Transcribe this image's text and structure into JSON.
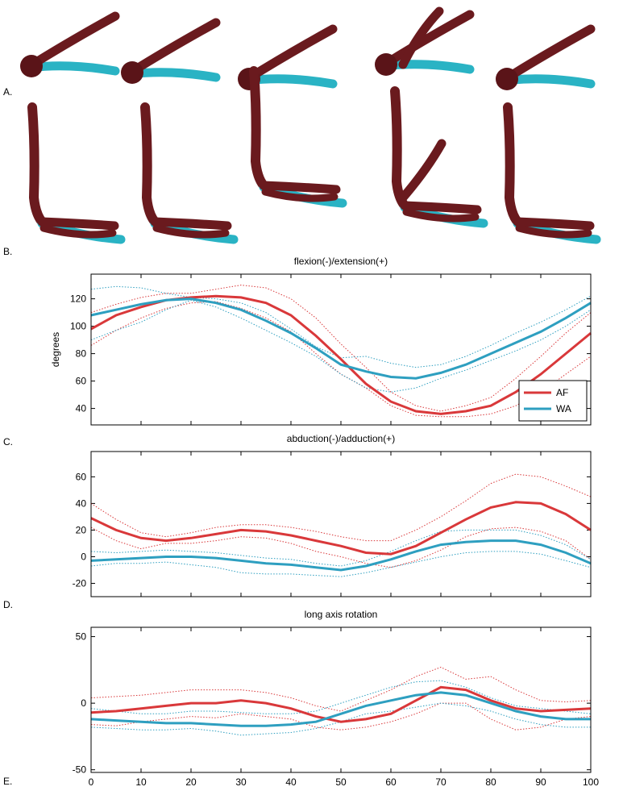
{
  "panel_labels": [
    "A.",
    "B.",
    "C.",
    "D.",
    "E."
  ],
  "chart_data": [
    {
      "type": "line",
      "title": "flexion(-)/extension(+)",
      "ylabel": "degrees",
      "legend": "lower right",
      "xtick_labels": false,
      "x": [
        0,
        5,
        10,
        15,
        20,
        25,
        30,
        35,
        40,
        45,
        50,
        55,
        60,
        65,
        70,
        75,
        80,
        85,
        90,
        95,
        100
      ],
      "xlim": [
        0,
        100
      ],
      "xticks": [
        0,
        10,
        20,
        30,
        40,
        50,
        60,
        70,
        80,
        90,
        100
      ],
      "ylim": [
        28,
        138
      ],
      "yticks": [
        40,
        60,
        80,
        100,
        120
      ],
      "series": [
        {
          "name": "AF",
          "color": "#d9383a",
          "style": "solid",
          "values": [
            98,
            108,
            114,
            119,
            121,
            122,
            121,
            117,
            108,
            93,
            76,
            58,
            45,
            38,
            36,
            38,
            42,
            52,
            65,
            80,
            95
          ]
        },
        {
          "name": "WA",
          "color": "#2e9fc0",
          "style": "solid",
          "values": [
            108,
            112,
            116,
            119,
            120,
            117,
            112,
            104,
            95,
            84,
            72,
            67,
            63,
            62,
            66,
            72,
            80,
            88,
            96,
            106,
            117
          ]
        },
        {
          "color": "#d9383a",
          "style": "dotted",
          "values": [
            110,
            116,
            121,
            124,
            124,
            127,
            130,
            128,
            120,
            106,
            87,
            70,
            52,
            42,
            38,
            42,
            48,
            62,
            78,
            95,
            110
          ]
        },
        {
          "color": "#d9383a",
          "style": "dotted",
          "values": [
            86,
            97,
            106,
            113,
            117,
            118,
            113,
            106,
            96,
            80,
            65,
            55,
            42,
            35,
            34,
            34,
            36,
            42,
            52,
            65,
            78
          ]
        },
        {
          "color": "#2e9fc0",
          "style": "dotted",
          "values": [
            127,
            129,
            128,
            124,
            121,
            120,
            117,
            110,
            98,
            85,
            77,
            78,
            73,
            70,
            72,
            78,
            86,
            95,
            103,
            112,
            122
          ]
        },
        {
          "color": "#2e9fc0",
          "style": "dotted",
          "values": [
            90,
            97,
            103,
            112,
            119,
            114,
            106,
            97,
            88,
            78,
            65,
            55,
            52,
            55,
            62,
            68,
            75,
            82,
            90,
            100,
            112
          ]
        }
      ]
    },
    {
      "type": "line",
      "title": "abduction(-)/adduction(+)",
      "xtick_labels": false,
      "x": [
        0,
        5,
        10,
        15,
        20,
        25,
        30,
        35,
        40,
        45,
        50,
        55,
        60,
        65,
        70,
        75,
        80,
        85,
        90,
        95,
        100
      ],
      "xlim": [
        0,
        100
      ],
      "xticks": [
        0,
        10,
        20,
        30,
        40,
        50,
        60,
        70,
        80,
        90,
        100
      ],
      "ylim": [
        -30,
        79
      ],
      "yticks": [
        -20,
        0,
        20,
        40,
        60
      ],
      "series": [
        {
          "color": "#d9383a",
          "style": "solid",
          "values": [
            29,
            20,
            14,
            12,
            14,
            17,
            20,
            19,
            16,
            12,
            8,
            3,
            2,
            8,
            18,
            28,
            37,
            41,
            40,
            32,
            20
          ]
        },
        {
          "color": "#2e9fc0",
          "style": "solid",
          "values": [
            -3,
            -2,
            -1,
            0,
            0,
            -1,
            -3,
            -5,
            -6,
            -8,
            -10,
            -7,
            -2,
            4,
            9,
            11,
            12,
            12,
            9,
            3,
            -5
          ]
        },
        {
          "color": "#d9383a",
          "style": "dotted",
          "values": [
            40,
            28,
            18,
            15,
            18,
            22,
            24,
            24,
            22,
            19,
            15,
            12,
            12,
            20,
            30,
            42,
            55,
            62,
            60,
            53,
            45
          ]
        },
        {
          "color": "#d9383a",
          "style": "dotted",
          "values": [
            22,
            12,
            6,
            10,
            10,
            12,
            15,
            14,
            10,
            4,
            0,
            -5,
            -8,
            -3,
            5,
            15,
            21,
            22,
            19,
            12,
            -2
          ]
        },
        {
          "color": "#2e9fc0",
          "style": "dotted",
          "values": [
            4,
            3,
            4,
            5,
            4,
            3,
            1,
            -1,
            -2,
            -5,
            -7,
            -3,
            4,
            12,
            19,
            20,
            20,
            20,
            16,
            9,
            -2
          ]
        },
        {
          "color": "#2e9fc0",
          "style": "dotted",
          "values": [
            -7,
            -5,
            -5,
            -4,
            -6,
            -8,
            -12,
            -13,
            -13,
            -14,
            -15,
            -12,
            -8,
            -4,
            0,
            3,
            4,
            4,
            2,
            -3,
            -8
          ]
        }
      ]
    },
    {
      "type": "line",
      "title": "long axis rotation",
      "xtick_labels": true,
      "x": [
        0,
        5,
        10,
        15,
        20,
        25,
        30,
        35,
        40,
        45,
        50,
        55,
        60,
        65,
        70,
        75,
        80,
        85,
        90,
        95,
        100
      ],
      "xlim": [
        0,
        100
      ],
      "xticks": [
        0,
        10,
        20,
        30,
        40,
        50,
        60,
        70,
        80,
        90,
        100
      ],
      "ylim": [
        -52,
        57
      ],
      "yticks": [
        -50,
        0,
        50
      ],
      "series": [
        {
          "color": "#d9383a",
          "style": "solid",
          "values": [
            -7,
            -6,
            -4,
            -2,
            0,
            0,
            2,
            0,
            -4,
            -10,
            -14,
            -12,
            -8,
            2,
            12,
            10,
            2,
            -4,
            -6,
            -5,
            -4
          ]
        },
        {
          "color": "#2e9fc0",
          "style": "solid",
          "values": [
            -12,
            -13,
            -14,
            -15,
            -15,
            -16,
            -17,
            -17,
            -16,
            -14,
            -8,
            -2,
            2,
            6,
            8,
            6,
            0,
            -6,
            -10,
            -12,
            -12
          ]
        },
        {
          "color": "#d9383a",
          "style": "dotted",
          "values": [
            4,
            5,
            6,
            8,
            10,
            10,
            10,
            8,
            4,
            -2,
            -6,
            2,
            10,
            20,
            27,
            18,
            20,
            10,
            2,
            1,
            2
          ]
        },
        {
          "color": "#d9383a",
          "style": "dotted",
          "values": [
            -16,
            -17,
            -14,
            -12,
            -10,
            -11,
            -8,
            -10,
            -12,
            -18,
            -20,
            -18,
            -14,
            -8,
            0,
            0,
            -12,
            -20,
            -18,
            -12,
            -10
          ]
        },
        {
          "color": "#2e9fc0",
          "style": "dotted",
          "values": [
            -4,
            -6,
            -8,
            -8,
            -6,
            -6,
            -7,
            -8,
            -8,
            -6,
            0,
            6,
            12,
            16,
            17,
            12,
            4,
            -2,
            -4,
            -6,
            -8
          ]
        },
        {
          "color": "#2e9fc0",
          "style": "dotted",
          "values": [
            -18,
            -19,
            -20,
            -20,
            -19,
            -21,
            -24,
            -23,
            -22,
            -19,
            -14,
            -8,
            -6,
            -3,
            0,
            -2,
            -6,
            -12,
            -16,
            -18,
            -18
          ]
        }
      ]
    }
  ]
}
